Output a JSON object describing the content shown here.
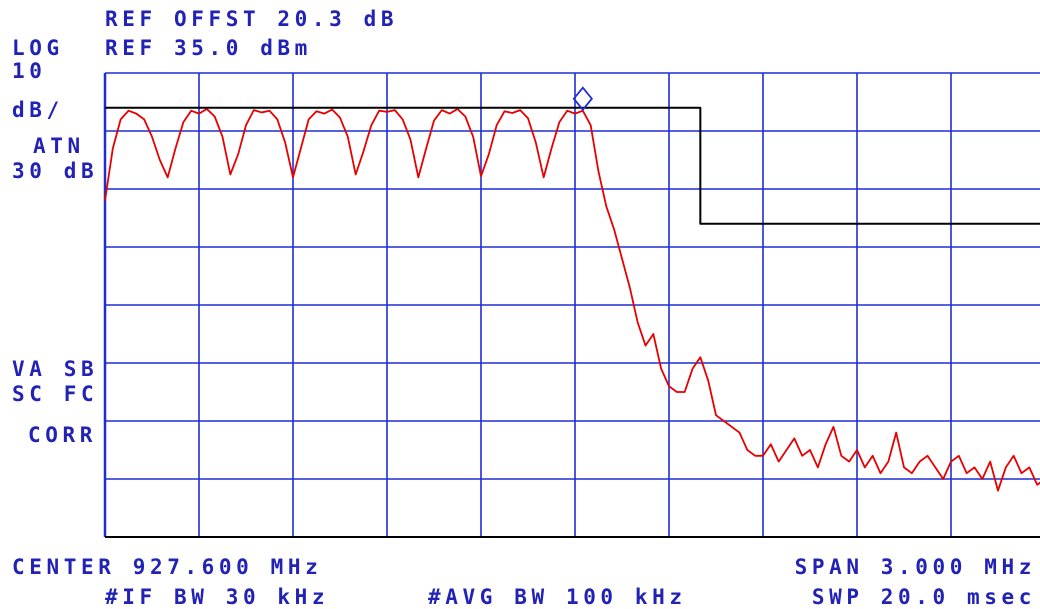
{
  "chart_data": {
    "type": "line",
    "annotations": [
      "REF OFFST 20.3 dB",
      "LOG",
      "REF 35.0 dBm",
      "10",
      "dB/",
      "ATN",
      "30 dB",
      "VA SB",
      "SC FC",
      "CORR",
      "CENTER 927.600 MHz",
      "SPAN 3.000 MHz",
      "#IF BW 30 kHz",
      "#AVG BW 100 kHz",
      "SWP 20.0 msec"
    ],
    "xlim": [
      926.1,
      929.1
    ],
    "ylim": [
      -45,
      35
    ],
    "xticks": [
      926.1,
      926.4,
      926.7,
      927.0,
      927.3,
      927.6,
      927.9,
      928.2,
      928.5,
      928.8,
      929.1
    ],
    "yticks": [
      -45,
      -35,
      -25,
      -15,
      -5,
      5,
      15,
      25,
      35
    ],
    "grid": true,
    "grid_color": "#1e2ed2",
    "series": [
      {
        "color": "#e80000",
        "x": [
          926.1,
          926.125,
          926.15,
          926.175,
          926.2,
          926.225,
          926.25,
          926.275,
          926.3,
          926.325,
          926.35,
          926.375,
          926.4,
          926.425,
          926.45,
          926.475,
          926.5,
          926.525,
          926.55,
          926.575,
          926.6,
          926.625,
          926.65,
          926.675,
          926.7,
          926.725,
          926.75,
          926.775,
          926.8,
          926.825,
          926.85,
          926.875,
          926.9,
          926.925,
          926.95,
          926.975,
          927.0,
          927.025,
          927.05,
          927.075,
          927.1,
          927.125,
          927.15,
          927.175,
          927.2,
          927.225,
          927.25,
          927.275,
          927.3,
          927.325,
          927.35,
          927.375,
          927.4,
          927.425,
          927.45,
          927.475,
          927.5,
          927.525,
          927.55,
          927.575,
          927.6,
          927.625,
          927.65,
          927.675,
          927.7,
          927.725,
          927.75,
          927.775,
          927.8,
          927.825,
          927.85,
          927.875,
          927.9,
          927.925,
          927.95,
          927.975,
          928.0,
          928.025,
          928.05,
          928.075,
          928.1,
          928.125,
          928.15,
          928.175,
          928.2,
          928.225,
          928.25,
          928.275,
          928.3,
          928.325,
          928.35,
          928.375,
          928.4,
          928.425,
          928.45,
          928.475,
          928.5,
          928.525,
          928.55,
          928.575,
          928.6,
          928.625,
          928.65,
          928.675,
          928.7,
          928.725,
          928.75,
          928.775,
          928.8,
          928.825,
          928.85,
          928.875,
          928.9,
          928.925,
          928.95,
          928.975,
          929.0,
          929.025,
          929.05,
          929.075,
          929.1
        ],
        "values": [
          13,
          22,
          27,
          28.5,
          28,
          27,
          24,
          20,
          17,
          22,
          26.5,
          28.5,
          28,
          28.8,
          27.5,
          24,
          17.5,
          21,
          26,
          28.6,
          28.2,
          28.5,
          27,
          23,
          17,
          22,
          27,
          28.4,
          28,
          28.7,
          27.3,
          24,
          17.5,
          21.5,
          26,
          28.5,
          28.3,
          28.6,
          27,
          23.5,
          17,
          22,
          26.8,
          28.6,
          28,
          28.8,
          27.5,
          24,
          17.2,
          21,
          26,
          28.4,
          28.1,
          28.6,
          27.2,
          23,
          17,
          22,
          26.5,
          28.5,
          28,
          28.5,
          26,
          18,
          12,
          8,
          3,
          -2,
          -8,
          -12,
          -10,
          -16,
          -19,
          -20,
          -20,
          -16,
          -14,
          -18,
          -24,
          -25,
          -26,
          -27,
          -30,
          -31,
          -31,
          -29,
          -32,
          -30,
          -28,
          -31,
          -30,
          -33,
          -29,
          -26,
          -31,
          -32,
          -30,
          -33,
          -31,
          -34,
          -32,
          -27,
          -33,
          -34,
          -32,
          -31,
          -33,
          -35,
          -32,
          -31,
          -34,
          -33,
          -35,
          -32,
          -37,
          -33,
          -31,
          -34,
          -33,
          -36,
          -35
        ]
      },
      {
        "color": "#000000",
        "x": [
          926.1,
          928.0,
          928.0,
          929.1
        ],
        "values": [
          29,
          29,
          9,
          9
        ]
      }
    ],
    "marker": {
      "x": 927.625,
      "value": 28.5,
      "color": "#1e2ed2"
    }
  }
}
